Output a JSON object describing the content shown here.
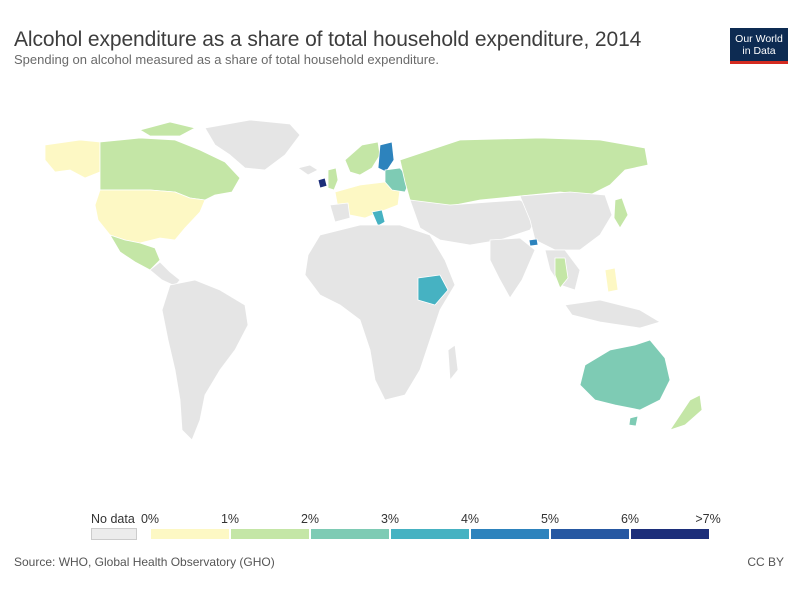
{
  "header": {
    "title": "Alcohol expenditure as a share of total household expenditure, 2014",
    "subtitle": "Spending on alcohol measured as a share of total household expenditure."
  },
  "logo": {
    "line1": "Our World",
    "line2": "in Data",
    "bg": "#0d2b52",
    "accent": "#d42b21"
  },
  "legend": {
    "no_data_label": "No data",
    "no_data_color": "#ececec",
    "ticks": [
      "0%",
      "1%",
      "2%",
      "3%",
      "4%",
      "5%",
      "6%",
      ">7%"
    ],
    "colors": [
      "#fdf8c4",
      "#c4e6a6",
      "#7ecbb4",
      "#46b2c2",
      "#2d83bd",
      "#2658a2",
      "#1c2e7a"
    ]
  },
  "map_colors": {
    "land_no_data": "#e5e5e5",
    "border": "#ffffff"
  },
  "countries_shaded": [
    {
      "name": "USA",
      "bucket": "0-1%"
    },
    {
      "name": "Canada",
      "bucket": "1-2%"
    },
    {
      "name": "Mexico",
      "bucket": "1-2%"
    },
    {
      "name": "Russia",
      "bucket": "1-2%"
    },
    {
      "name": "Finland",
      "bucket": "3-4%"
    },
    {
      "name": "Ireland",
      "bucket": ">7%"
    },
    {
      "name": "Ethiopia",
      "bucket": "3-4%"
    },
    {
      "name": "Australia",
      "bucket": "2-3%"
    },
    {
      "name": "New Zealand",
      "bucket": "1-2%"
    },
    {
      "name": "Thailand",
      "bucket": "1-2%"
    },
    {
      "name": "Japan",
      "bucket": "1-2%"
    },
    {
      "name": "Bhutan",
      "bucket": "4-5%"
    }
  ],
  "footer": {
    "source": "Source: WHO, Global Health Observatory (GHO)",
    "license": "CC BY"
  }
}
